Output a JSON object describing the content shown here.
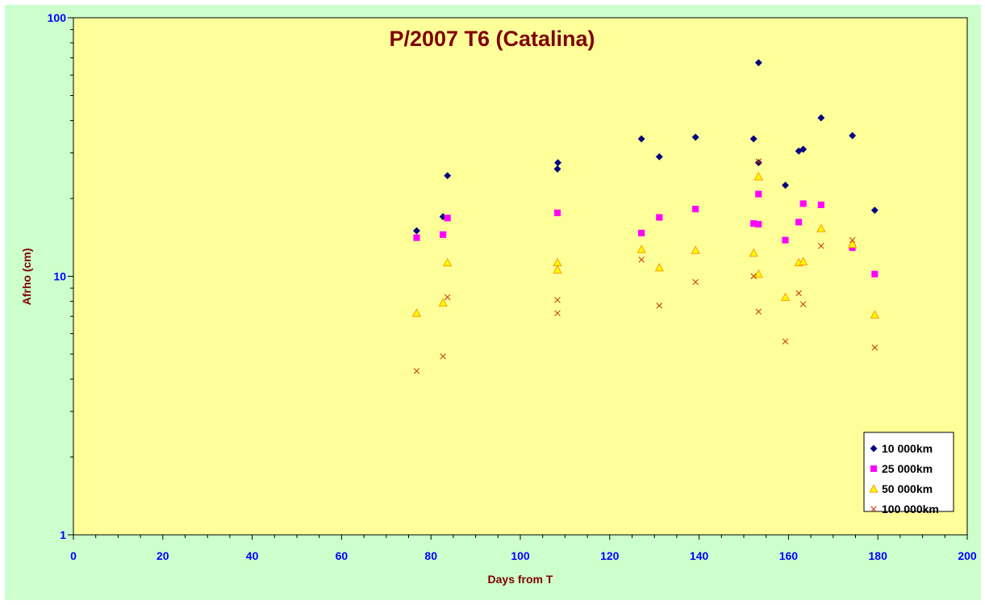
{
  "colors": {
    "chart_background": "#ccffcc",
    "plot_background": "#ffff99",
    "title": "#800000",
    "axis_title": "#800000",
    "tick_label": "#0000ff",
    "axis_line": "#000000"
  },
  "chart_data": {
    "type": "scatter",
    "title": "P/2007 T6 (Catalina)",
    "xlabel": "Days from T",
    "ylabel": "Afrho (cm)",
    "xlim": [
      0,
      200
    ],
    "ylim": [
      1,
      100
    ],
    "yscale": "log",
    "grid": false,
    "legend_position": "bottom-right",
    "x_ticks": [
      "0",
      "20",
      "40",
      "60",
      "80",
      "100",
      "120",
      "140",
      "160",
      "180",
      "200"
    ],
    "y_ticks": [
      "1",
      "10",
      "100"
    ],
    "series": [
      {
        "name": "10 000km",
        "marker": "diamond",
        "color": "#000080",
        "x": [
          76.8,
          82.7,
          83.7,
          108.3,
          108.4,
          127.1,
          131.1,
          139.2,
          152.2,
          153.3,
          153.3,
          159.3,
          162.3,
          163.3,
          167.3,
          174.3,
          179.3
        ],
        "y": [
          15.0,
          17.0,
          24.5,
          26.0,
          27.5,
          34.0,
          29.0,
          34.5,
          34.0,
          67.0,
          27.5,
          22.5,
          30.5,
          31.0,
          41.0,
          35.0,
          18.0
        ]
      },
      {
        "name": "25 000km",
        "marker": "square",
        "color": "#ff00ff",
        "x": [
          76.8,
          82.7,
          83.7,
          108.3,
          127.1,
          131.1,
          139.2,
          152.2,
          153.3,
          153.3,
          159.3,
          162.3,
          163.3,
          167.3,
          174.3,
          179.3
        ],
        "y": [
          14.1,
          14.5,
          16.8,
          17.6,
          14.7,
          16.9,
          18.2,
          16.0,
          20.8,
          15.9,
          13.8,
          16.2,
          19.1,
          18.9,
          12.9,
          10.2
        ]
      },
      {
        "name": "50 000km",
        "marker": "triangle",
        "color": "#ff9900",
        "x": [
          76.8,
          82.7,
          83.7,
          108.3,
          108.3,
          127.1,
          131.1,
          139.2,
          152.2,
          153.3,
          153.3,
          159.3,
          162.3,
          163.3,
          167.3,
          174.3,
          179.3
        ],
        "y": [
          7.2,
          7.9,
          11.3,
          11.3,
          10.6,
          12.7,
          10.8,
          12.6,
          12.3,
          10.2,
          24.3,
          8.3,
          11.3,
          11.4,
          15.3,
          13.3,
          7.1
        ]
      },
      {
        "name": "100 000km",
        "marker": "x",
        "color": "#cc3300",
        "x": [
          76.8,
          82.7,
          83.7,
          108.3,
          108.3,
          127.1,
          131.1,
          139.2,
          152.2,
          153.3,
          153.3,
          159.3,
          162.3,
          163.3,
          167.3,
          174.3,
          179.3
        ],
        "y": [
          4.3,
          4.9,
          8.3,
          8.1,
          7.2,
          11.6,
          7.7,
          9.5,
          10.0,
          7.3,
          27.8,
          5.6,
          8.6,
          7.8,
          13.1,
          13.8,
          5.3
        ]
      }
    ]
  }
}
